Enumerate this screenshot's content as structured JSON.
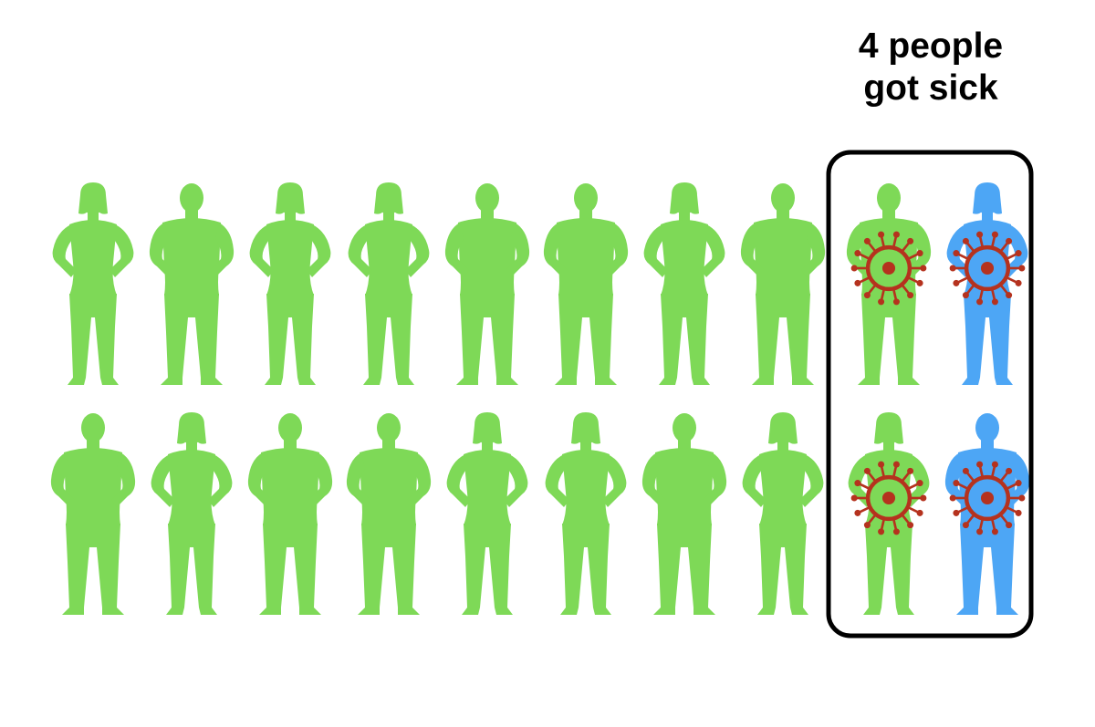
{
  "callout": {
    "line1": "4 people",
    "line2": "got sick"
  },
  "colors": {
    "healthy": "#7ed957",
    "sick_blue": "#4da6f5",
    "virus": "#b5321e",
    "box": "#000000"
  },
  "icons": {
    "person_female": "person-female-icon",
    "person_male": "person-male-icon",
    "virus": "virus-icon"
  },
  "rows": [
    {
      "people": [
        {
          "figure": "female",
          "color": "healthy",
          "sick": false
        },
        {
          "figure": "male",
          "color": "healthy",
          "sick": false
        },
        {
          "figure": "female",
          "color": "healthy",
          "sick": false
        },
        {
          "figure": "female",
          "color": "healthy",
          "sick": false
        },
        {
          "figure": "male",
          "color": "healthy",
          "sick": false
        },
        {
          "figure": "male",
          "color": "healthy",
          "sick": false
        },
        {
          "figure": "female",
          "color": "healthy",
          "sick": false
        },
        {
          "figure": "male",
          "color": "healthy",
          "sick": false
        },
        {
          "figure": "male",
          "color": "healthy",
          "sick": true
        },
        {
          "figure": "female",
          "color": "sick_blue",
          "sick": true
        }
      ]
    },
    {
      "people": [
        {
          "figure": "male",
          "color": "healthy",
          "sick": false
        },
        {
          "figure": "female",
          "color": "healthy",
          "sick": false
        },
        {
          "figure": "male",
          "color": "healthy",
          "sick": false
        },
        {
          "figure": "male",
          "color": "healthy",
          "sick": false
        },
        {
          "figure": "female",
          "color": "healthy",
          "sick": false
        },
        {
          "figure": "female",
          "color": "healthy",
          "sick": false
        },
        {
          "figure": "male",
          "color": "healthy",
          "sick": false
        },
        {
          "figure": "female",
          "color": "healthy",
          "sick": false
        },
        {
          "figure": "female",
          "color": "healthy",
          "sick": true
        },
        {
          "figure": "male",
          "color": "sick_blue",
          "sick": true
        }
      ]
    }
  ]
}
